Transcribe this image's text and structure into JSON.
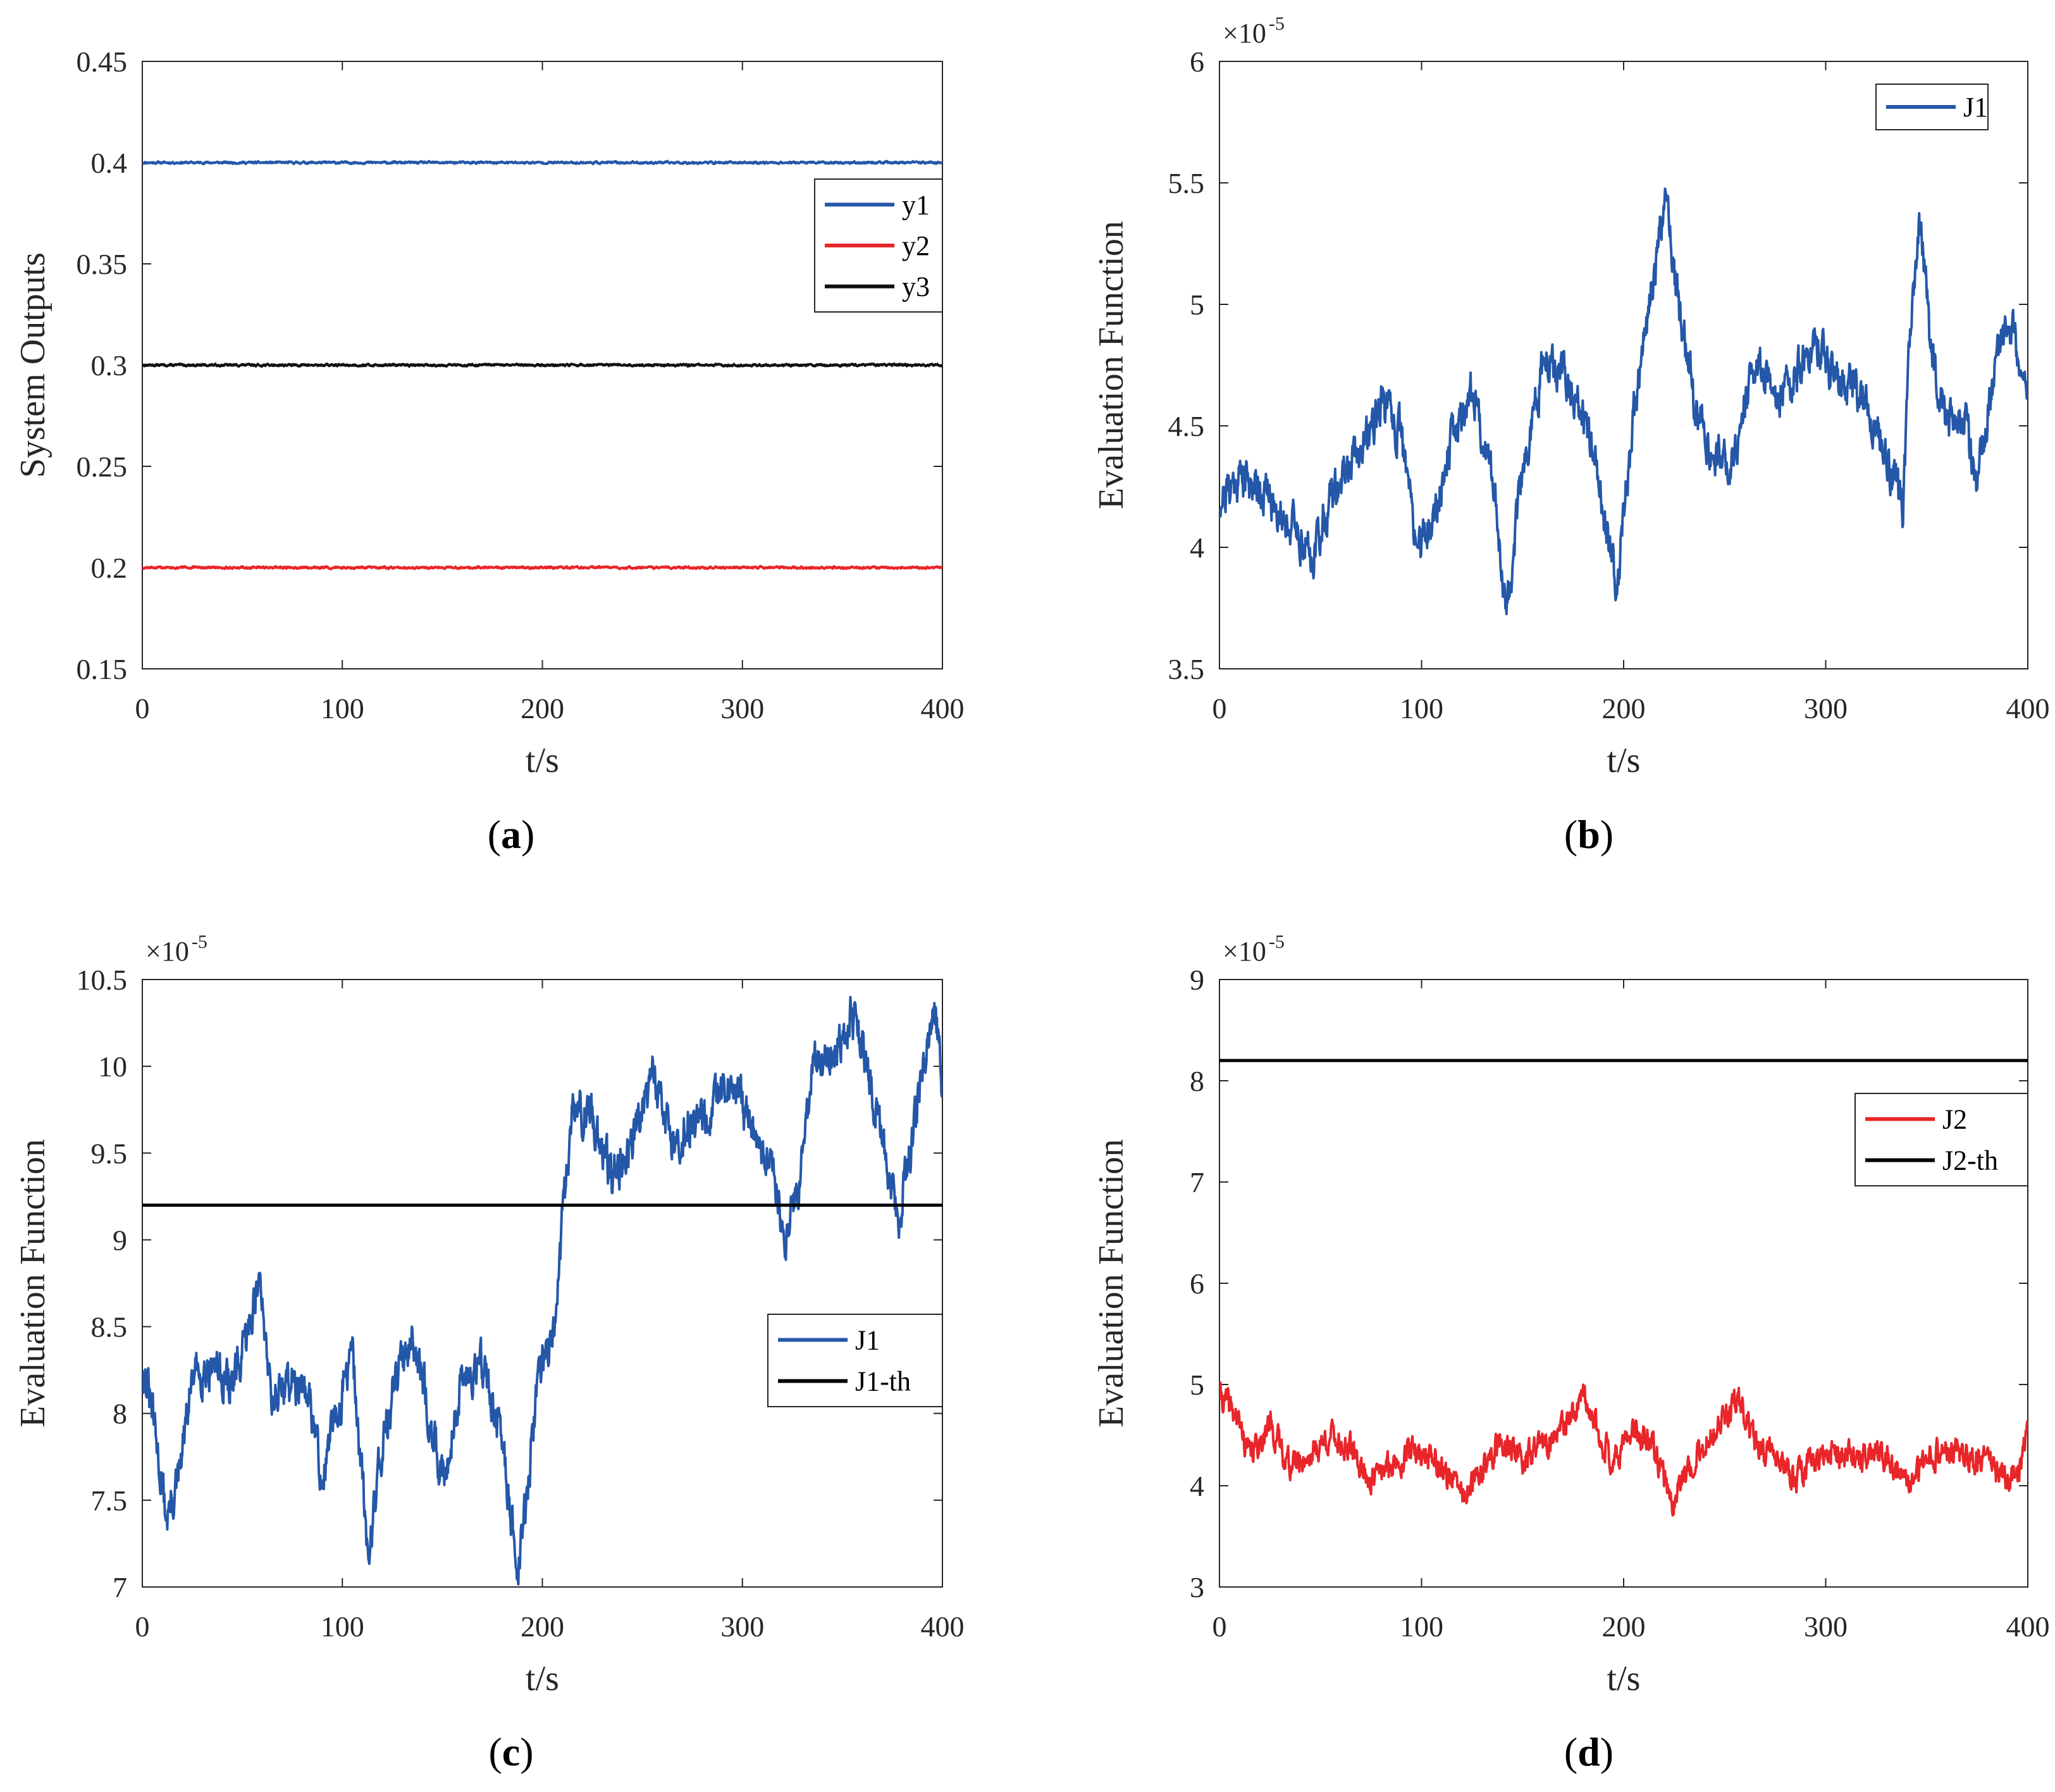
{
  "chart_data": [
    {
      "id": "a",
      "panel_label": "a",
      "type": "line",
      "xlabel": "t/s",
      "ylabel": "System Outputs",
      "xlim": [
        0,
        400
      ],
      "ylim": [
        0.15,
        0.45
      ],
      "xticks": [
        0,
        100,
        200,
        300,
        400
      ],
      "yticks": [
        0.15,
        0.2,
        0.25,
        0.3,
        0.35,
        0.4,
        0.45
      ],
      "ytick_labels": [
        "0.15",
        "0.2",
        "0.25",
        "0.3",
        "0.35",
        "0.4",
        "0.45"
      ],
      "exponent": "",
      "legend_position": "upper-right",
      "series": [
        {
          "name": "y1",
          "color": "#2457a8",
          "kind": "const",
          "value": 0.4,
          "noise": 0.0004,
          "seed": 11
        },
        {
          "name": "y2",
          "color": "#e8262a",
          "kind": "const",
          "value": 0.2,
          "noise": 0.0004,
          "seed": 12
        },
        {
          "name": "y3",
          "color": "#111111",
          "kind": "const",
          "value": 0.3,
          "noise": 0.0004,
          "seed": 13
        }
      ]
    },
    {
      "id": "b",
      "panel_label": "b",
      "type": "line",
      "xlabel": "t/s",
      "ylabel": "Evaluation Function",
      "xlim": [
        0,
        400
      ],
      "ylim": [
        3.5,
        6
      ],
      "xticks": [
        0,
        100,
        200,
        300,
        400
      ],
      "yticks": [
        3.5,
        4,
        4.5,
        5,
        5.5,
        6
      ],
      "ytick_labels": [
        "3.5",
        "4",
        "4.5",
        "5",
        "5.5",
        "6"
      ],
      "exponent": "-5",
      "legend_position": "top-right",
      "series": [
        {
          "name": "J1",
          "color": "#2457a8",
          "kind": "noisy",
          "noise": 0.07,
          "seed": 21,
          "anchors": [
            [
              0,
              4.2
            ],
            [
              10,
              4.3
            ],
            [
              20,
              4.25
            ],
            [
              30,
              4.15
            ],
            [
              40,
              4.05
            ],
            [
              45,
              3.95
            ],
            [
              55,
              4.2
            ],
            [
              70,
              4.4
            ],
            [
              80,
              4.6
            ],
            [
              90,
              4.45
            ],
            [
              98,
              4.0
            ],
            [
              105,
              4.1
            ],
            [
              115,
              4.45
            ],
            [
              125,
              4.65
            ],
            [
              135,
              4.3
            ],
            [
              142,
              3.75
            ],
            [
              150,
              4.3
            ],
            [
              160,
              4.75
            ],
            [
              170,
              4.7
            ],
            [
              180,
              4.55
            ],
            [
              190,
              4.15
            ],
            [
              197,
              3.85
            ],
            [
              205,
              4.55
            ],
            [
              215,
              5.1
            ],
            [
              221,
              5.5
            ],
            [
              226,
              5.05
            ],
            [
              235,
              4.6
            ],
            [
              245,
              4.35
            ],
            [
              255,
              4.4
            ],
            [
              265,
              4.75
            ],
            [
              275,
              4.6
            ],
            [
              285,
              4.7
            ],
            [
              295,
              4.85
            ],
            [
              305,
              4.7
            ],
            [
              315,
              4.65
            ],
            [
              325,
              4.5
            ],
            [
              333,
              4.3
            ],
            [
              338,
              4.15
            ],
            [
              342,
              4.9
            ],
            [
              347,
              5.35
            ],
            [
              352,
              4.8
            ],
            [
              360,
              4.5
            ],
            [
              368,
              4.55
            ],
            [
              375,
              4.25
            ],
            [
              383,
              4.7
            ],
            [
              390,
              4.95
            ],
            [
              396,
              4.75
            ],
            [
              400,
              4.65
            ]
          ]
        }
      ]
    },
    {
      "id": "c",
      "panel_label": "c",
      "type": "line",
      "xlabel": "t/s",
      "ylabel": "Evaluation Function",
      "xlim": [
        0,
        400
      ],
      "ylim": [
        7,
        10.5
      ],
      "xticks": [
        0,
        100,
        200,
        300,
        400
      ],
      "yticks": [
        7,
        7.5,
        8,
        8.5,
        9,
        9.5,
        10,
        10.5
      ],
      "ytick_labels": [
        "7",
        "7.5",
        "8",
        "8.5",
        "9",
        "9.5",
        "10",
        "10.5"
      ],
      "exponent": "-5",
      "legend_position": "middle-right",
      "series": [
        {
          "name": "J1",
          "color": "#2457a8",
          "kind": "noisy",
          "noise": 0.1,
          "seed": 31,
          "anchors": [
            [
              0,
              8.3
            ],
            [
              5,
              8.0
            ],
            [
              12,
              7.4
            ],
            [
              18,
              7.6
            ],
            [
              25,
              8.2
            ],
            [
              35,
              8.3
            ],
            [
              45,
              8.15
            ],
            [
              52,
              8.4
            ],
            [
              58,
              8.8
            ],
            [
              65,
              8.1
            ],
            [
              75,
              8.2
            ],
            [
              85,
              8.0
            ],
            [
              90,
              7.6
            ],
            [
              95,
              7.9
            ],
            [
              105,
              8.35
            ],
            [
              110,
              7.6
            ],
            [
              113,
              7.15
            ],
            [
              118,
              7.7
            ],
            [
              125,
              8.1
            ],
            [
              135,
              8.5
            ],
            [
              145,
              7.9
            ],
            [
              150,
              7.6
            ],
            [
              160,
              8.2
            ],
            [
              170,
              8.3
            ],
            [
              180,
              7.8
            ],
            [
              188,
              7.1
            ],
            [
              193,
              7.6
            ],
            [
              198,
              8.3
            ],
            [
              205,
              8.35
            ],
            [
              210,
              9.1
            ],
            [
              215,
              9.75
            ],
            [
              225,
              9.7
            ],
            [
              235,
              9.35
            ],
            [
              245,
              9.6
            ],
            [
              255,
              10.0
            ],
            [
              265,
              9.55
            ],
            [
              275,
              9.7
            ],
            [
              285,
              9.75
            ],
            [
              295,
              9.9
            ],
            [
              305,
              9.6
            ],
            [
              315,
              9.4
            ],
            [
              322,
              9.0
            ],
            [
              328,
              9.3
            ],
            [
              335,
              10.0
            ],
            [
              345,
              10.05
            ],
            [
              355,
              10.3
            ],
            [
              362,
              10.0
            ],
            [
              370,
              9.6
            ],
            [
              378,
              9.1
            ],
            [
              385,
              9.6
            ],
            [
              392,
              10.1
            ],
            [
              396,
              10.35
            ],
            [
              400,
              9.9
            ]
          ]
        },
        {
          "name": "J1-th",
          "color": "#000000",
          "kind": "line",
          "value": 9.2
        }
      ]
    },
    {
      "id": "d",
      "panel_label": "d",
      "type": "line",
      "xlabel": "t/s",
      "ylabel": "Evaluation Function",
      "xlim": [
        0,
        400
      ],
      "ylim": [
        3,
        9
      ],
      "xticks": [
        0,
        100,
        200,
        300,
        400
      ],
      "yticks": [
        3,
        4,
        5,
        6,
        7,
        8,
        9
      ],
      "ytick_labels": [
        "3",
        "4",
        "5",
        "6",
        "7",
        "8",
        "9"
      ],
      "exponent": "-5",
      "legend_position": "upper-right",
      "series": [
        {
          "name": "J2",
          "color": "#e8262a",
          "kind": "noisy",
          "noise": 0.11,
          "seed": 41,
          "anchors": [
            [
              0,
              4.9
            ],
            [
              8,
              4.7
            ],
            [
              15,
              4.3
            ],
            [
              25,
              4.6
            ],
            [
              35,
              4.2
            ],
            [
              45,
              4.3
            ],
            [
              55,
              4.5
            ],
            [
              65,
              4.35
            ],
            [
              75,
              4.05
            ],
            [
              85,
              4.2
            ],
            [
              95,
              4.35
            ],
            [
              105,
              4.3
            ],
            [
              115,
              4.05
            ],
            [
              122,
              3.9
            ],
            [
              130,
              4.15
            ],
            [
              140,
              4.45
            ],
            [
              150,
              4.25
            ],
            [
              160,
              4.4
            ],
            [
              170,
              4.55
            ],
            [
              180,
              4.85
            ],
            [
              188,
              4.5
            ],
            [
              195,
              4.25
            ],
            [
              205,
              4.55
            ],
            [
              215,
              4.35
            ],
            [
              224,
              3.85
            ],
            [
              232,
              4.2
            ],
            [
              242,
              4.45
            ],
            [
              250,
              4.65
            ],
            [
              257,
              4.85
            ],
            [
              265,
              4.4
            ],
            [
              275,
              4.3
            ],
            [
              285,
              4.05
            ],
            [
              295,
              4.3
            ],
            [
              305,
              4.35
            ],
            [
              315,
              4.25
            ],
            [
              325,
              4.35
            ],
            [
              335,
              4.2
            ],
            [
              342,
              4.0
            ],
            [
              350,
              4.25
            ],
            [
              360,
              4.35
            ],
            [
              370,
              4.3
            ],
            [
              380,
              4.2
            ],
            [
              390,
              4.05
            ],
            [
              396,
              4.2
            ],
            [
              400,
              4.55
            ]
          ]
        },
        {
          "name": "J2-th",
          "color": "#000000",
          "kind": "line",
          "value": 8.2
        }
      ]
    }
  ]
}
